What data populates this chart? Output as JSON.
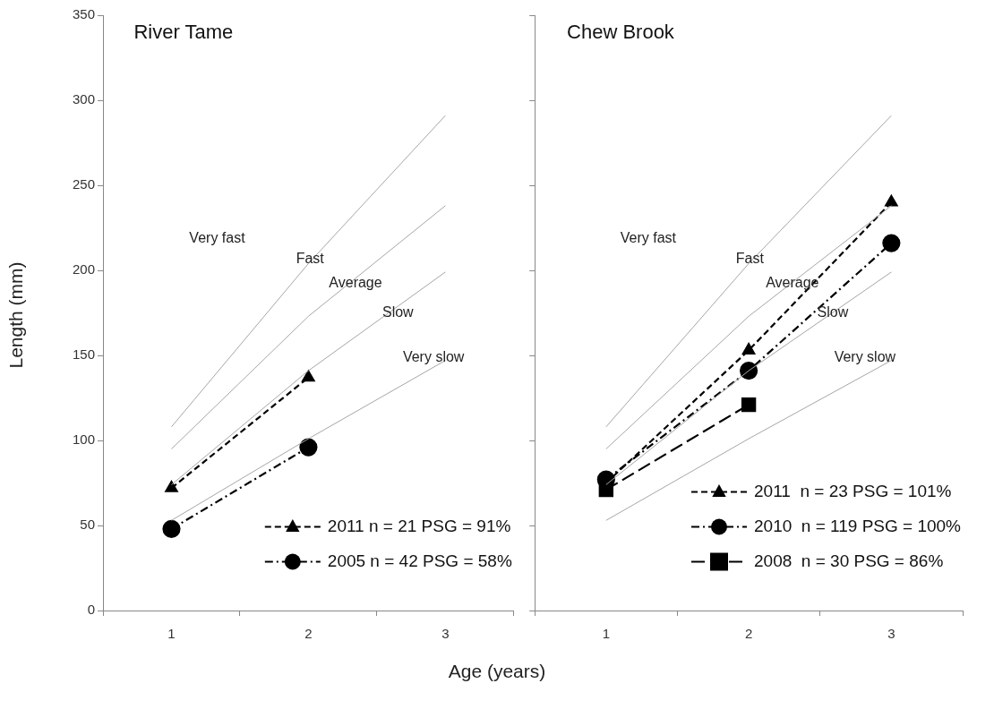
{
  "chart_data": [
    {
      "type": "line",
      "title": "River Tame",
      "xlabel": "Age (years)",
      "ylabel": "Length (mm)",
      "categories": [
        "1",
        "2",
        "3"
      ],
      "ylim": [
        0,
        350
      ],
      "yticks": [
        0,
        50,
        100,
        150,
        200,
        250,
        300,
        350
      ],
      "grid": false,
      "legend": "bottom right",
      "annotations": [
        "Very fast",
        "Fast",
        "Average",
        "Slow",
        "Very slow"
      ],
      "series": [
        {
          "color": "#a6a6a6",
          "marker": "none",
          "line_style": "solid",
          "values": [
            108,
            204,
            291
          ]
        },
        {
          "color": "#a6a6a6",
          "marker": "none",
          "line_style": "solid",
          "values": [
            95,
            173,
            238
          ]
        },
        {
          "color": "#a6a6a6",
          "marker": "none",
          "line_style": "solid",
          "values": [
            74,
            141,
            199
          ]
        },
        {
          "color": "#a6a6a6",
          "marker": "none",
          "line_style": "solid",
          "values": [
            53,
            101,
            147
          ]
        },
        {
          "name": "2011 n = 21 PSG = 91%",
          "color": "#000000",
          "marker": "triangle",
          "line_style": "dashed",
          "values": [
            72,
            137,
            null
          ]
        },
        {
          "name": "2005 n = 42 PSG = 58%",
          "color": "#000000",
          "marker": "circle",
          "line_style": "dotted",
          "values": [
            48,
            96,
            null
          ]
        }
      ]
    },
    {
      "type": "line",
      "title": "Chew Brook",
      "categories": [
        "1",
        "2",
        "3"
      ],
      "ylim": [
        0,
        350
      ],
      "yticks": [
        0,
        50,
        100,
        150,
        200,
        250,
        300,
        350
      ],
      "tick_labels": "x",
      "grid": false,
      "legend": "bottom right",
      "annotations": [
        "Very fast",
        "Fast",
        "Average",
        "Slow",
        "Very slow"
      ],
      "series": [
        {
          "color": "#a6a6a6",
          "marker": "none",
          "line_style": "solid",
          "values": [
            108,
            204,
            291
          ]
        },
        {
          "color": "#a6a6a6",
          "marker": "none",
          "line_style": "solid",
          "values": [
            95,
            173,
            238
          ]
        },
        {
          "color": "#a6a6a6",
          "marker": "none",
          "line_style": "solid",
          "values": [
            74,
            141,
            199
          ]
        },
        {
          "color": "#a6a6a6",
          "marker": "none",
          "line_style": "solid",
          "values": [
            53,
            101,
            147
          ]
        },
        {
          "name": "2011  n = 23 PSG = 101%",
          "color": "#000000",
          "marker": "triangle",
          "line_style": "dashed",
          "values": [
            75,
            153,
            240
          ]
        },
        {
          "name": "2010  n = 119 PSG = 100%",
          "color": "#000000",
          "marker": "circle",
          "line_style": "dotted",
          "values": [
            77,
            141,
            216
          ]
        },
        {
          "name": "2008  n = 30 PSG = 86%",
          "color": "#000000",
          "marker": "square",
          "line_style": "dashed",
          "values": [
            71,
            121,
            null
          ]
        }
      ]
    }
  ]
}
